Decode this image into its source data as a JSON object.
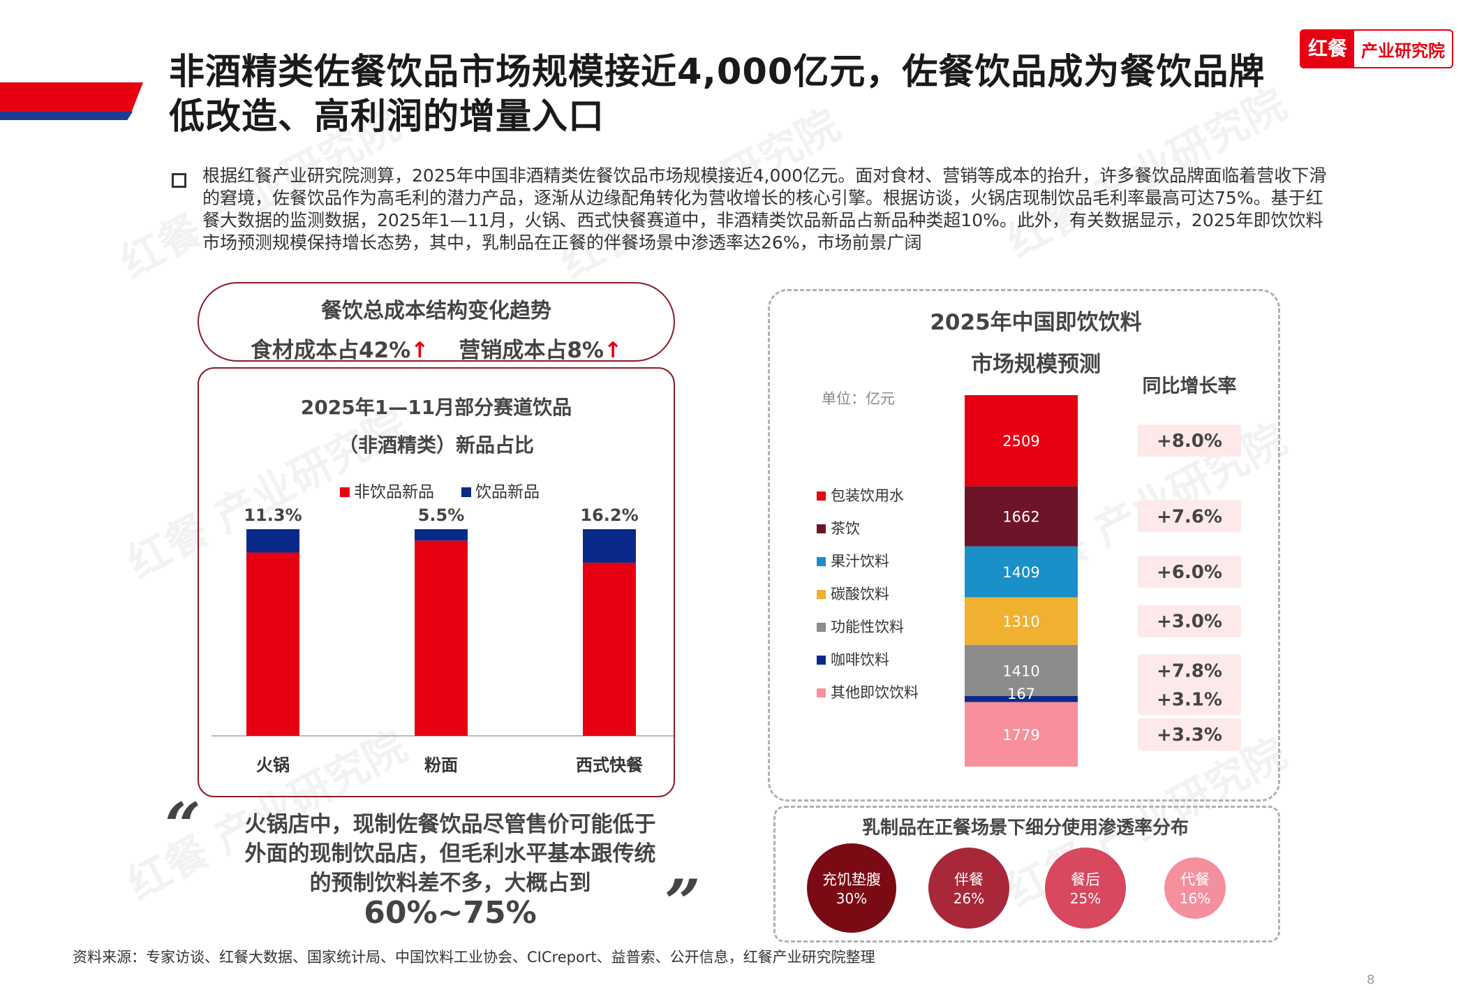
{
  "header": {
    "title_line1": "非酒精类佐餐饮品市场规模接近4,000亿元，佐餐饮品成为餐饮品牌",
    "title_line2": "低改造、高利润的增量入口",
    "logo_a": "红餐",
    "logo_b": "产业研究院"
  },
  "intro": "根据红餐产业研究院测算，2025年中国非酒精类佐餐饮品市场规模接近4,000亿元。面对食材、营销等成本的抬升，许多餐饮品牌面临着营收下滑的窘境，佐餐饮品作为高毛利的潜力产品，逐渐从边缘配角转化为营收增长的核心引擎。根据访谈，火锅店现制饮品毛利率最高可达75%。基于红餐大数据的监测数据，2025年1—11月，火锅、西式快餐赛道中，非酒精类饮品新品占新品种类超10%。此外，有关数据显示，2025年即饮饮料市场预测规模保持增长态势，其中，乳制品在正餐的伴餐场景中渗透率达26%，市场前景广阔",
  "cost_pill": {
    "title": "餐饮总成本结构变化趋势",
    "food": "食材成本占42%",
    "marketing": "营销成本占8%",
    "arrow": "↑"
  },
  "left_chart": {
    "title1": "2025年1—11月部分赛道饮品",
    "title2": "（非酒精类）新品占比",
    "legend": [
      {
        "label": "非饮品新品",
        "color": "#e60012"
      },
      {
        "label": "饮品新品",
        "color": "#0a2a8a"
      }
    ]
  },
  "chart_data": [
    {
      "type": "bar",
      "title": "2025年1—11月部分赛道饮品（非酒精类）新品占比",
      "categories": [
        "火锅",
        "粉面",
        "西式快餐"
      ],
      "series": [
        {
          "name": "非饮品新品",
          "values": [
            88.7,
            94.5,
            83.8
          ]
        },
        {
          "name": "饮品新品",
          "values": [
            11.3,
            5.5,
            16.2
          ]
        }
      ],
      "data_labels": [
        "11.3%",
        "5.5%",
        "16.2%"
      ],
      "stacked": true,
      "ylim": [
        0,
        100
      ]
    },
    {
      "type": "bar",
      "title": "2025年中国即饮饮料市场规模预测",
      "unit": "单位：亿元",
      "categories": [
        "包装饮用水",
        "茶饮",
        "果汁饮料",
        "碳酸饮料",
        "功能性饮料",
        "咖啡饮料",
        "其他即饮饮料"
      ],
      "values": [
        2509,
        1662,
        1409,
        1310,
        1410,
        167,
        1779
      ],
      "colors": [
        "#e60012",
        "#6e1428",
        "#1a8fc8",
        "#f0b030",
        "#8c8c8c",
        "#0a2a8a",
        "#f7909c"
      ],
      "growth_header": "同比增长率",
      "growth": [
        "+8.0%",
        "+7.6%",
        "+6.0%",
        "+3.0%",
        "+7.8%",
        "+3.1%",
        "+3.3%"
      ],
      "stacked": true
    }
  ],
  "right_chart": {
    "title1": "2025年中国即饮饮料",
    "title2": "市场规模预测",
    "unit": "单位：亿元",
    "growth_header": "同比增长率"
  },
  "dairy": {
    "title": "乳制品在正餐场景下细分使用渗透率分布",
    "items": [
      {
        "label": "充饥垫腹",
        "value": "30%"
      },
      {
        "label": "伴餐",
        "value": "26%"
      },
      {
        "label": "餐后",
        "value": "25%"
      },
      {
        "label": "代餐",
        "value": "16%"
      }
    ]
  },
  "quote": {
    "open": "“",
    "close": "”",
    "line1": "火锅店中，现制佐餐饮品尽管售价可能低于",
    "line2": "外面的现制饮品店，但毛利水平基本跟传统",
    "line3": "的预制饮料差不多，大概占到",
    "big": "60%~75%"
  },
  "source": "资料来源：专家访谈、红餐大数据、国家统计局、中国饮料工业协会、CICreport、益普索、公开信息，红餐产业研究院整理",
  "page_number": "8",
  "watermark": "红餐 产业研究院",
  "colors": {
    "accent": "#e60012",
    "navy": "#1d3c96",
    "maroon": "#8b1a2b"
  }
}
